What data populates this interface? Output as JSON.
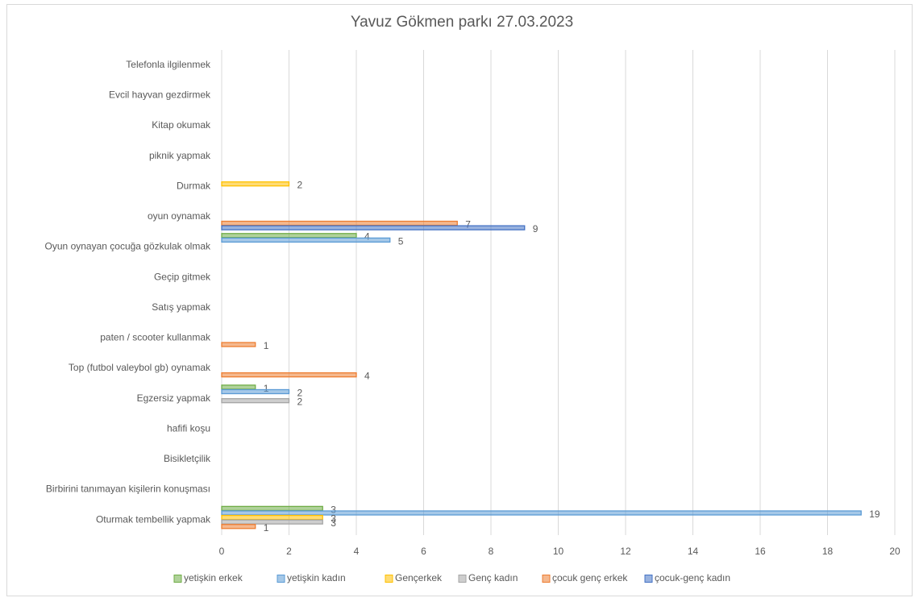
{
  "chart_data": {
    "type": "bar",
    "orientation": "horizontal",
    "title": "Yavuz Gökmen parkı 27.03.2023",
    "categories": [
      "Telefonla ilgilenmek",
      "Evcil hayvan gezdirmek",
      "Kitap okumak",
      "piknik yapmak",
      "Durmak",
      "oyun oynamak",
      "Oyun oynayan çocuğa gözkulak olmak",
      "Geçip gitmek",
      "Satış yapmak",
      "paten / scooter kullanmak",
      "Top (futbol valeybol  gb) oynamak",
      "Egzersiz yapmak",
      "hafifi koşu",
      "Bisikletçilik",
      "Birbirini tanımayan kişilerin konuşması",
      "Oturmak tembellik yapmak"
    ],
    "series": [
      {
        "name": "yetişkin erkek",
        "color": "#70ad47",
        "values": [
          null,
          null,
          null,
          null,
          null,
          null,
          4,
          null,
          null,
          null,
          null,
          1,
          null,
          null,
          null,
          3
        ]
      },
      {
        "name": "yetişkin kadın",
        "color": "#5b9bd5",
        "values": [
          null,
          null,
          null,
          null,
          null,
          null,
          5,
          null,
          null,
          null,
          null,
          2,
          null,
          null,
          null,
          19
        ]
      },
      {
        "name": "Gençerkek",
        "color": "#ffc000",
        "values": [
          null,
          null,
          null,
          null,
          2,
          null,
          null,
          null,
          null,
          null,
          null,
          null,
          null,
          null,
          null,
          3
        ]
      },
      {
        "name": "Genç kadın",
        "color": "#a5a5a5",
        "values": [
          null,
          null,
          null,
          null,
          null,
          null,
          null,
          null,
          null,
          null,
          null,
          2,
          null,
          null,
          null,
          3
        ]
      },
      {
        "name": "çocuk genç erkek",
        "color": "#ed7d31",
        "values": [
          null,
          null,
          null,
          null,
          null,
          7,
          null,
          null,
          null,
          1,
          4,
          null,
          null,
          null,
          null,
          1
        ]
      },
      {
        "name": "çocuk-genç kadın",
        "color": "#4472c4",
        "values": [
          null,
          null,
          null,
          null,
          null,
          9,
          null,
          null,
          null,
          null,
          null,
          null,
          null,
          null,
          null,
          null
        ]
      }
    ],
    "xlim": [
      0,
      20
    ],
    "xticks": [
      0,
      2,
      4,
      6,
      8,
      10,
      12,
      14,
      16,
      18,
      20
    ],
    "grid": true,
    "legend": "bottom"
  }
}
